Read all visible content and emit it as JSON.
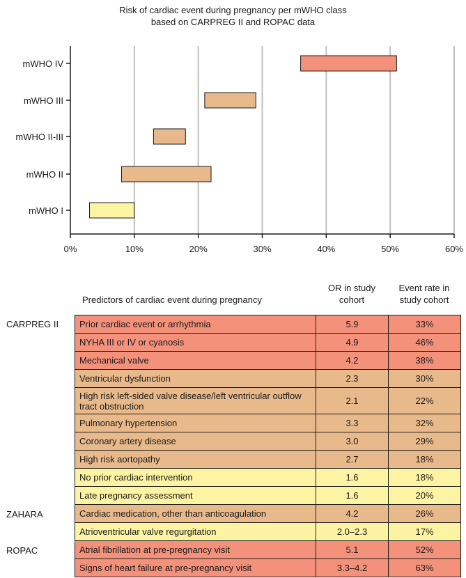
{
  "chart_data": {
    "type": "range_bar",
    "title": "Risk of cardiac event during pregnancy per mWHO class\nbased on CARPREG II and ROPAC data",
    "categories": [
      "mWHO I",
      "mWHO II",
      "mWHO II-III",
      "mWHO III",
      "mWHO IV"
    ],
    "ranges": [
      [
        3,
        10
      ],
      [
        8,
        22
      ],
      [
        13,
        18
      ],
      [
        21,
        29
      ],
      [
        36,
        51
      ]
    ],
    "colors": [
      "#fdf4a3",
      "#e8b98a",
      "#e8b98a",
      "#e8b98a",
      "#f4917a"
    ],
    "xticks": [
      "0%",
      "10%",
      "20%",
      "30%",
      "40%",
      "50%",
      "60%"
    ],
    "xlim": [
      0,
      60
    ],
    "grid": true
  },
  "table": {
    "headers": {
      "predictor": "Predictors of cardiac event during pregnancy",
      "or": "OR in study cohort",
      "rate": "Event rate in study cohort"
    },
    "groups": [
      "CARPREG II",
      "ZAHARA",
      "ROPAC"
    ],
    "rows": [
      {
        "predictor": "Prior cardiac event or arrhythmia",
        "or": "5.9",
        "rate": "33%",
        "color": "#f4917a"
      },
      {
        "predictor": "NYHA III or IV or cyanosis",
        "or": "4.9",
        "rate": "46%",
        "color": "#f4917a"
      },
      {
        "predictor": "Mechanical valve",
        "or": "4.2",
        "rate": "38%",
        "color": "#f4917a"
      },
      {
        "predictor": "Ventricular dysfunction",
        "or": "2.3",
        "rate": "30%",
        "color": "#e8b98a"
      },
      {
        "predictor": "High risk left-sided valve disease/left ventricular outflow tract obstruction",
        "or": "2.1",
        "rate": "22%",
        "color": "#e8b98a"
      },
      {
        "predictor": "Pulmonary hypertension",
        "or": "3.3",
        "rate": "32%",
        "color": "#e8b98a"
      },
      {
        "predictor": "Coronary artery disease",
        "or": "3.0",
        "rate": "29%",
        "color": "#e8b98a"
      },
      {
        "predictor": "High risk aortopathy",
        "or": "2.7",
        "rate": "18%",
        "color": "#e8b98a"
      },
      {
        "predictor": "No prior cardiac intervention",
        "or": "1.6",
        "rate": "18%",
        "color": "#fdf4a3"
      },
      {
        "predictor": "Late pregnancy assessment",
        "or": "1.6",
        "rate": "20%",
        "color": "#fdf4a3"
      },
      {
        "predictor": "Cardiac medication, other than anticoagulation",
        "or": "4.2",
        "rate": "26%",
        "color": "#e8b98a"
      },
      {
        "predictor": "Atrioventricular valve regurgitation",
        "or": "2.0–2.3",
        "rate": "17%",
        "color": "#fdf4a3"
      },
      {
        "predictor": "Atrial fibrillation at pre-pregnancy visit",
        "or": "5.1",
        "rate": "52%",
        "color": "#f4917a"
      },
      {
        "predictor": "Signs of heart failure at pre-pregnancy visit",
        "or": "3.3–4.2",
        "rate": "63%",
        "color": "#f4917a"
      }
    ]
  }
}
